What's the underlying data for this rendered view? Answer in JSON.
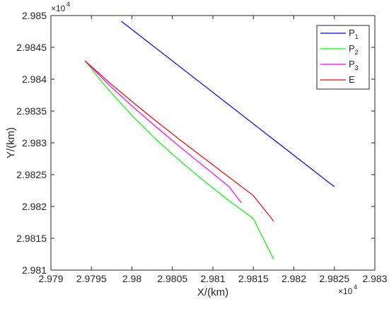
{
  "chart_data": {
    "type": "line",
    "title": "",
    "xlabel": "X/(km)",
    "ylabel": "Y/(km)",
    "x_exponent_label": "×10",
    "x_exponent_power": "4",
    "y_exponent_label": "×10",
    "y_exponent_power": "4",
    "xlim": [
      2.979,
      2.983
    ],
    "ylim": [
      2.981,
      2.985
    ],
    "x_ticks": [
      2.979,
      2.9795,
      2.98,
      2.9805,
      2.981,
      2.9815,
      2.982,
      2.9825,
      2.983
    ],
    "x_tick_labels": [
      "2.979",
      "2.9795",
      "2.98",
      "2.9805",
      "2.981",
      "2.9815",
      "2.982",
      "2.9825",
      "2.983"
    ],
    "y_ticks": [
      2.981,
      2.9815,
      2.982,
      2.9825,
      2.983,
      2.9835,
      2.984,
      2.9845,
      2.985
    ],
    "y_tick_labels": [
      "2.981",
      "2.9815",
      "2.982",
      "2.9825",
      "2.983",
      "2.9835",
      "2.984",
      "2.9845",
      "2.985"
    ],
    "grid": false,
    "legend_position": "top-right",
    "series": [
      {
        "name": "P",
        "subscript": "1",
        "color": "#0000ff",
        "points": [
          [
            2.97987,
            2.98491
          ],
          [
            2.9825,
            2.98231
          ]
        ]
      },
      {
        "name": "P",
        "subscript": "2",
        "color": "#00ff00",
        "points": [
          [
            2.97942,
            2.98429
          ],
          [
            2.9797,
            2.98385
          ],
          [
            2.98,
            2.98343
          ],
          [
            2.9803,
            2.98305
          ],
          [
            2.9806,
            2.98271
          ],
          [
            2.9809,
            2.98239
          ],
          [
            2.9812,
            2.98209
          ],
          [
            2.9815,
            2.98181
          ],
          [
            2.98175,
            2.98117
          ]
        ]
      },
      {
        "name": "P",
        "subscript": "3",
        "color": "#ff00ff",
        "points": [
          [
            2.97942,
            2.98429
          ],
          [
            2.9797,
            2.98393
          ],
          [
            2.98,
            2.98358
          ],
          [
            2.9803,
            2.98325
          ],
          [
            2.9806,
            2.98293
          ],
          [
            2.9809,
            2.98262
          ],
          [
            2.9812,
            2.98231
          ],
          [
            2.98135,
            2.98206
          ]
        ]
      },
      {
        "name": "E",
        "subscript": "",
        "color": "#ff0000",
        "points": [
          [
            2.97942,
            2.98429
          ],
          [
            2.9797,
            2.98397
          ],
          [
            2.98,
            2.98365
          ],
          [
            2.9803,
            2.98334
          ],
          [
            2.9806,
            2.98304
          ],
          [
            2.9809,
            2.98275
          ],
          [
            2.9812,
            2.98246
          ],
          [
            2.9815,
            2.98217
          ],
          [
            2.98175,
            2.98177
          ]
        ]
      }
    ]
  }
}
